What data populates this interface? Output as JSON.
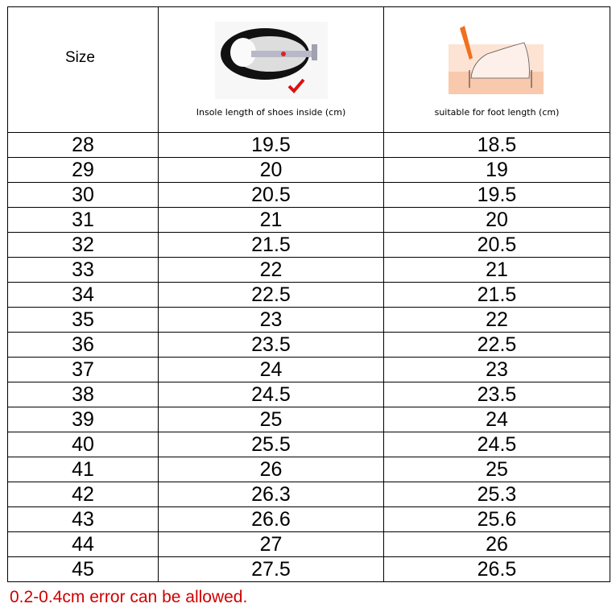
{
  "header": {
    "size_label": "Size",
    "insole_caption": "Insole length of shoes inside (cm)",
    "foot_caption": "suitable for foot length (cm)"
  },
  "rows": [
    {
      "size": "28",
      "insole": "19.5",
      "foot": "18.5"
    },
    {
      "size": "29",
      "insole": "20",
      "foot": "19"
    },
    {
      "size": "30",
      "insole": "20.5",
      "foot": "19.5"
    },
    {
      "size": "31",
      "insole": "21",
      "foot": "20"
    },
    {
      "size": "32",
      "insole": "21.5",
      "foot": "20.5"
    },
    {
      "size": "33",
      "insole": "22",
      "foot": "21"
    },
    {
      "size": "34",
      "insole": "22.5",
      "foot": "21.5"
    },
    {
      "size": "35",
      "insole": "23",
      "foot": "22"
    },
    {
      "size": "36",
      "insole": "23.5",
      "foot": "22.5"
    },
    {
      "size": "37",
      "insole": "24",
      "foot": "23"
    },
    {
      "size": "38",
      "insole": "24.5",
      "foot": "23.5"
    },
    {
      "size": "39",
      "insole": "25",
      "foot": "24"
    },
    {
      "size": "40",
      "insole": "25.5",
      "foot": "24.5"
    },
    {
      "size": "41",
      "insole": "26",
      "foot": "25"
    },
    {
      "size": "42",
      "insole": "26.3",
      "foot": "25.3"
    },
    {
      "size": "43",
      "insole": "26.6",
      "foot": "25.6"
    },
    {
      "size": "44",
      "insole": "27",
      "foot": "26"
    },
    {
      "size": "45",
      "insole": "27.5",
      "foot": "26.5"
    }
  ],
  "footer_note": "0.2-0.4cm error can be allowed.",
  "colors": {
    "note": "#d00000",
    "border": "#000000"
  }
}
